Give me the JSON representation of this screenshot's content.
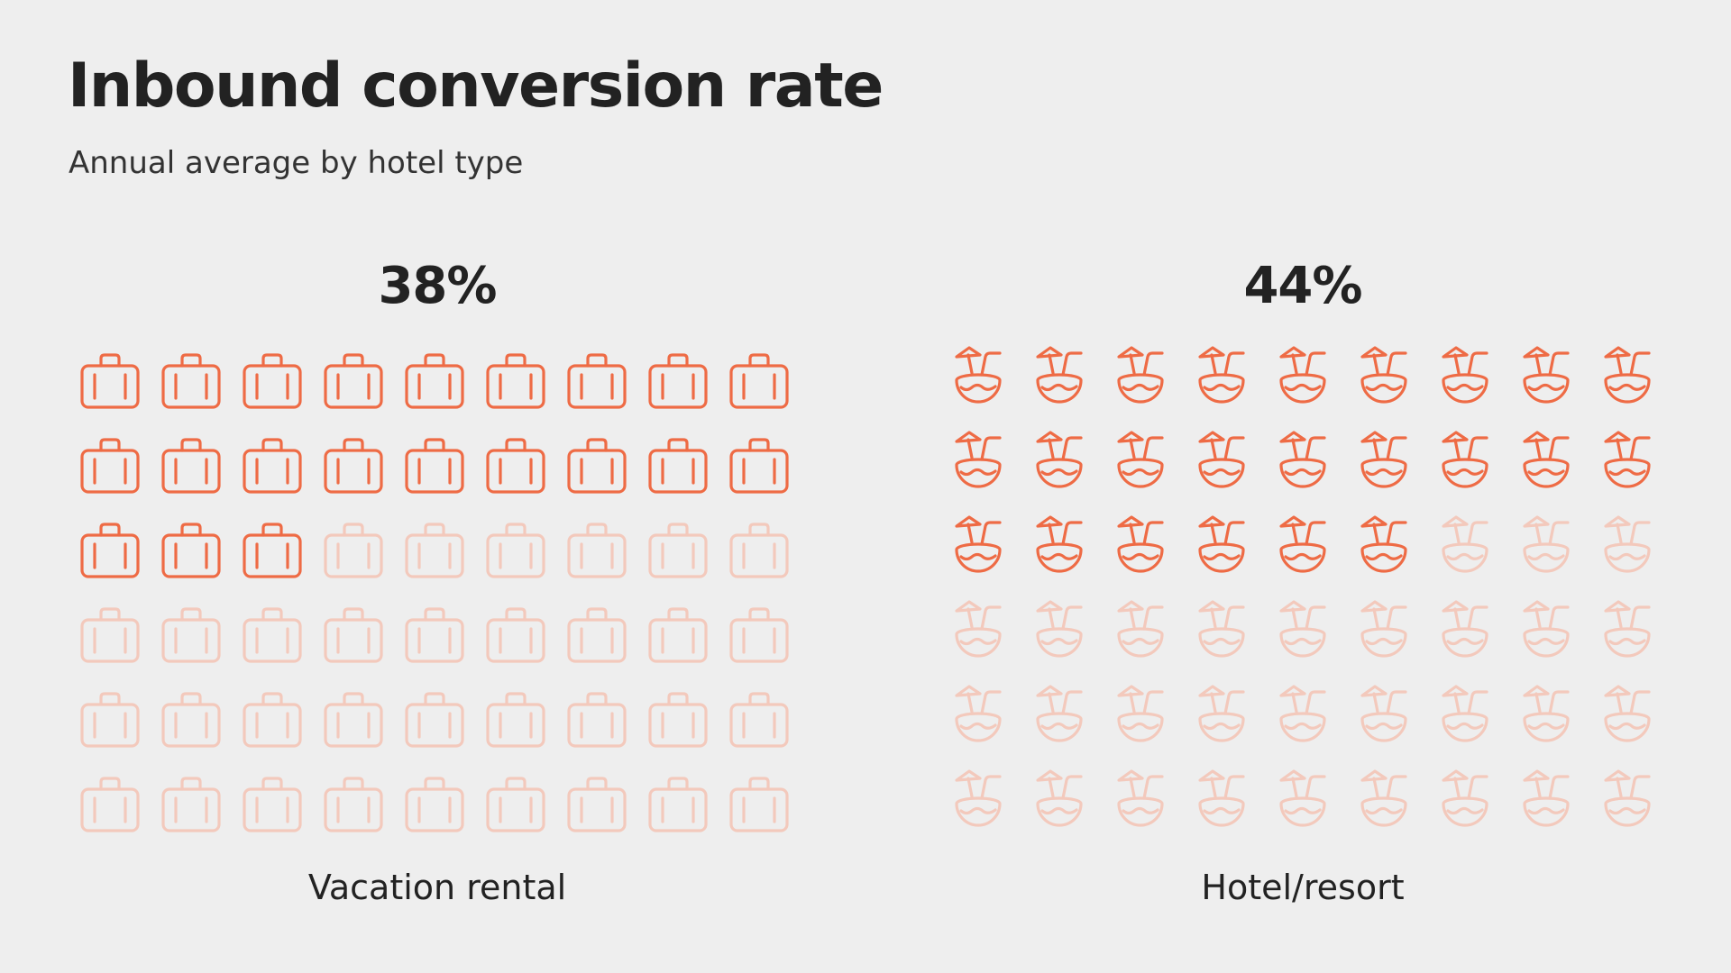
{
  "title": "Inbound conversion rate",
  "subtitle": "Annual average by hotel type",
  "colors": {
    "background": "#eeeeee",
    "accent": "#ee6b45",
    "muted": "#f3c9bc",
    "text": "#222222"
  },
  "chart_data": {
    "type": "pictogram",
    "title": "Inbound conversion rate",
    "subtitle": "Annual average by hotel type",
    "units_per_panel": 54,
    "grid": {
      "columns": 9,
      "rows": 6
    },
    "series": [
      {
        "name": "Vacation rental",
        "value": 38,
        "value_label": "38%",
        "icon": "suitcase-icon",
        "filled_icons": 21
      },
      {
        "name": "Hotel/resort",
        "value": 44,
        "value_label": "44%",
        "icon": "coconut-drink-icon",
        "filled_icons": 24
      }
    ]
  }
}
